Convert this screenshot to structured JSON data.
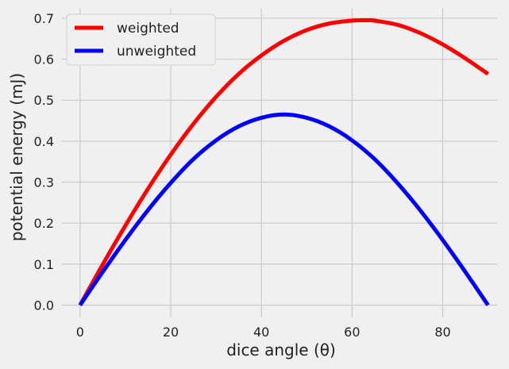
{
  "chart_data": {
    "type": "line",
    "xlabel": "dice angle (θ)",
    "ylabel": "potential energy (mJ)",
    "xlim": [
      -4,
      92
    ],
    "ylim": [
      -0.03,
      0.725
    ],
    "xticks": [
      0,
      20,
      40,
      60,
      80
    ],
    "yticks": [
      0.0,
      0.1,
      0.2,
      0.3,
      0.4,
      0.5,
      0.6,
      0.7
    ],
    "grid": true,
    "legend_position": "top-left",
    "series": [
      {
        "name": "weighted",
        "color": "#ff0000",
        "x": [
          0,
          5,
          10,
          15,
          20,
          25,
          30,
          35,
          40,
          45,
          50,
          55,
          60,
          63.5,
          65,
          70,
          75,
          80,
          85,
          90
        ],
        "y": [
          0.0,
          0.099,
          0.194,
          0.284,
          0.367,
          0.442,
          0.508,
          0.564,
          0.609,
          0.645,
          0.671,
          0.687,
          0.694,
          0.695,
          0.694,
          0.684,
          0.664,
          0.636,
          0.602,
          0.564
        ]
      },
      {
        "name": "unweighted",
        "color": "#0000ff",
        "x": [
          0,
          5,
          10,
          15,
          20,
          25,
          30,
          35,
          40,
          45,
          50,
          55,
          60,
          65,
          70,
          75,
          80,
          85,
          90
        ],
        "y": [
          0.0,
          0.081,
          0.159,
          0.232,
          0.298,
          0.356,
          0.402,
          0.436,
          0.457,
          0.465,
          0.457,
          0.436,
          0.402,
          0.356,
          0.298,
          0.232,
          0.159,
          0.081,
          0.0
        ]
      }
    ]
  }
}
